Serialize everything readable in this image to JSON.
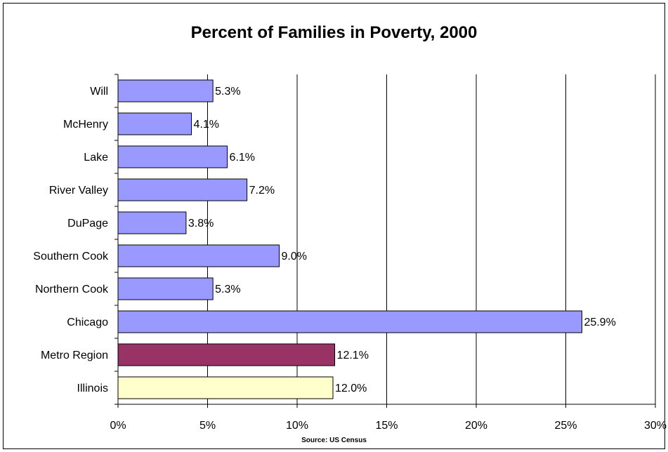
{
  "chart_data": {
    "type": "bar",
    "orientation": "horizontal",
    "title": "Percent of Families in Poverty, 2000",
    "source_note": "Source: US Census",
    "categories": [
      "Will",
      "McHenry",
      "Lake",
      "River Valley",
      "DuPage",
      "Southern Cook",
      "Northern Cook",
      "Chicago",
      "Metro Region",
      "Illinois"
    ],
    "values": [
      5.3,
      4.1,
      6.1,
      7.2,
      3.8,
      9.0,
      5.3,
      25.9,
      12.1,
      12.0
    ],
    "value_labels": [
      "5.3%",
      "4.1%",
      "6.1%",
      "7.2%",
      "3.8%",
      "9.0%",
      "5.3%",
      "25.9%",
      "12.1%",
      "12.0%"
    ],
    "bar_colors": [
      "#9999ff",
      "#9999ff",
      "#9999ff",
      "#9999ff",
      "#9999ff",
      "#9999ff",
      "#9999ff",
      "#9999ff",
      "#993366",
      "#ffffcc"
    ],
    "xlim": [
      0,
      30
    ],
    "xticks": [
      0,
      5,
      10,
      15,
      20,
      25,
      30
    ],
    "xtick_labels": [
      "0%",
      "5%",
      "10%",
      "15%",
      "20%",
      "25%",
      "30%"
    ],
    "grid": "vertical gridlines",
    "legend": "none"
  }
}
